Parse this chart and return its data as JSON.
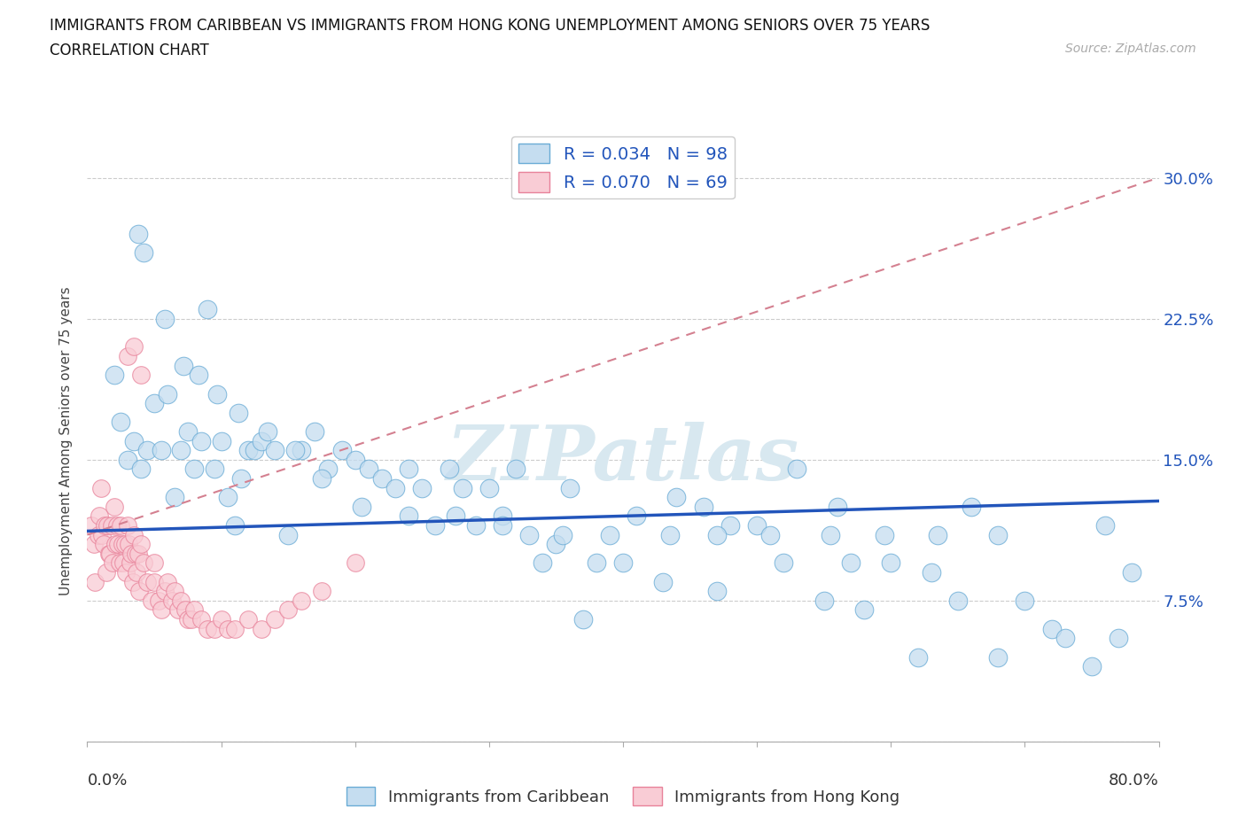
{
  "title_line1": "IMMIGRANTS FROM CARIBBEAN VS IMMIGRANTS FROM HONG KONG UNEMPLOYMENT AMONG SENIORS OVER 75 YEARS",
  "title_line2": "CORRELATION CHART",
  "source_text": "Source: ZipAtlas.com",
  "ylabel": "Unemployment Among Seniors over 75 years",
  "xlim": [
    0,
    80
  ],
  "ylim": [
    0,
    32
  ],
  "yticks": [
    0,
    7.5,
    15.0,
    22.5,
    30.0
  ],
  "ytick_labels": [
    "",
    "7.5%",
    "15.0%",
    "22.5%",
    "30.0%"
  ],
  "caribbean_R": "0.034",
  "caribbean_N": "98",
  "hk_R": "0.070",
  "hk_N": "69",
  "caribbean_color": "#c5ddf0",
  "caribbean_edge_color": "#6aacd6",
  "hk_color": "#f9ccd5",
  "hk_edge_color": "#e8829a",
  "trend_caribbean_color": "#2255bb",
  "trend_hk_color": "#e8a0b0",
  "legend_label_caribbean": "Immigrants from Caribbean",
  "legend_label_hk": "Immigrants from Hong Kong",
  "caribbean_trend_y0": 11.2,
  "caribbean_trend_y1": 12.8,
  "hk_trend_y0": 11.0,
  "hk_trend_y1": 30.0,
  "caribbean_x": [
    2.0,
    2.5,
    3.0,
    3.5,
    4.0,
    4.5,
    5.0,
    5.5,
    6.0,
    6.5,
    7.0,
    7.5,
    8.0,
    8.5,
    9.0,
    9.5,
    10.0,
    10.5,
    11.0,
    11.5,
    12.0,
    12.5,
    13.0,
    14.0,
    15.0,
    16.0,
    17.0,
    18.0,
    19.0,
    20.0,
    21.0,
    22.0,
    23.0,
    24.0,
    25.0,
    26.0,
    27.0,
    28.0,
    29.0,
    30.0,
    31.0,
    32.0,
    33.0,
    34.0,
    35.0,
    36.0,
    37.0,
    38.0,
    40.0,
    41.0,
    43.0,
    44.0,
    46.0,
    47.0,
    48.0,
    50.0,
    52.0,
    53.0,
    55.0,
    56.0,
    57.0,
    58.0,
    60.0,
    62.0,
    63.0,
    65.0,
    66.0,
    68.0,
    70.0,
    72.0,
    73.0,
    75.0,
    77.0,
    78.0,
    3.8,
    4.2,
    5.8,
    7.2,
    8.3,
    9.7,
    11.3,
    13.5,
    15.5,
    17.5,
    20.5,
    24.0,
    27.5,
    31.0,
    35.5,
    39.0,
    43.5,
    47.0,
    51.0,
    55.5,
    59.5,
    63.5,
    68.0,
    76.0
  ],
  "caribbean_y": [
    19.5,
    17.0,
    15.0,
    16.0,
    14.5,
    15.5,
    18.0,
    15.5,
    18.5,
    13.0,
    15.5,
    16.5,
    14.5,
    16.0,
    23.0,
    14.5,
    16.0,
    13.0,
    11.5,
    14.0,
    15.5,
    15.5,
    16.0,
    15.5,
    11.0,
    15.5,
    16.5,
    14.5,
    15.5,
    15.0,
    14.5,
    14.0,
    13.5,
    14.5,
    13.5,
    11.5,
    14.5,
    13.5,
    11.5,
    13.5,
    12.0,
    14.5,
    11.0,
    9.5,
    10.5,
    13.5,
    6.5,
    9.5,
    9.5,
    12.0,
    8.5,
    13.0,
    12.5,
    8.0,
    11.5,
    11.5,
    9.5,
    14.5,
    7.5,
    12.5,
    9.5,
    7.0,
    9.5,
    4.5,
    9.0,
    7.5,
    12.5,
    4.5,
    7.5,
    6.0,
    5.5,
    4.0,
    5.5,
    9.0,
    27.0,
    26.0,
    22.5,
    20.0,
    19.5,
    18.5,
    17.5,
    16.5,
    15.5,
    14.0,
    12.5,
    12.0,
    12.0,
    11.5,
    11.0,
    11.0,
    11.0,
    11.0,
    11.0,
    11.0,
    11.0,
    11.0,
    11.0,
    11.5
  ],
  "hk_x": [
    0.3,
    0.5,
    0.6,
    0.8,
    0.9,
    1.0,
    1.1,
    1.2,
    1.3,
    1.4,
    1.5,
    1.6,
    1.7,
    1.8,
    1.9,
    2.0,
    2.1,
    2.2,
    2.3,
    2.4,
    2.5,
    2.6,
    2.7,
    2.8,
    2.9,
    3.0,
    3.1,
    3.2,
    3.3,
    3.4,
    3.5,
    3.6,
    3.7,
    3.8,
    3.9,
    4.0,
    4.2,
    4.5,
    4.8,
    5.0,
    5.3,
    5.5,
    5.8,
    6.0,
    6.3,
    6.5,
    6.8,
    7.0,
    7.3,
    7.5,
    7.8,
    8.0,
    8.5,
    9.0,
    9.5,
    10.0,
    10.5,
    11.0,
    12.0,
    13.0,
    14.0,
    15.0,
    16.0,
    17.5,
    20.0,
    3.0,
    3.5,
    4.0,
    5.0
  ],
  "hk_y": [
    11.5,
    10.5,
    8.5,
    11.0,
    12.0,
    13.5,
    11.0,
    10.5,
    11.5,
    9.0,
    11.5,
    10.0,
    10.0,
    11.5,
    9.5,
    12.5,
    10.5,
    11.5,
    10.5,
    9.5,
    11.5,
    10.5,
    9.5,
    10.5,
    9.0,
    11.5,
    10.5,
    9.5,
    10.0,
    8.5,
    11.0,
    10.0,
    9.0,
    10.0,
    8.0,
    10.5,
    9.5,
    8.5,
    7.5,
    8.5,
    7.5,
    7.0,
    8.0,
    8.5,
    7.5,
    8.0,
    7.0,
    7.5,
    7.0,
    6.5,
    6.5,
    7.0,
    6.5,
    6.0,
    6.0,
    6.5,
    6.0,
    6.0,
    6.5,
    6.0,
    6.5,
    7.0,
    7.5,
    8.0,
    9.5,
    20.5,
    21.0,
    19.5,
    9.5
  ]
}
